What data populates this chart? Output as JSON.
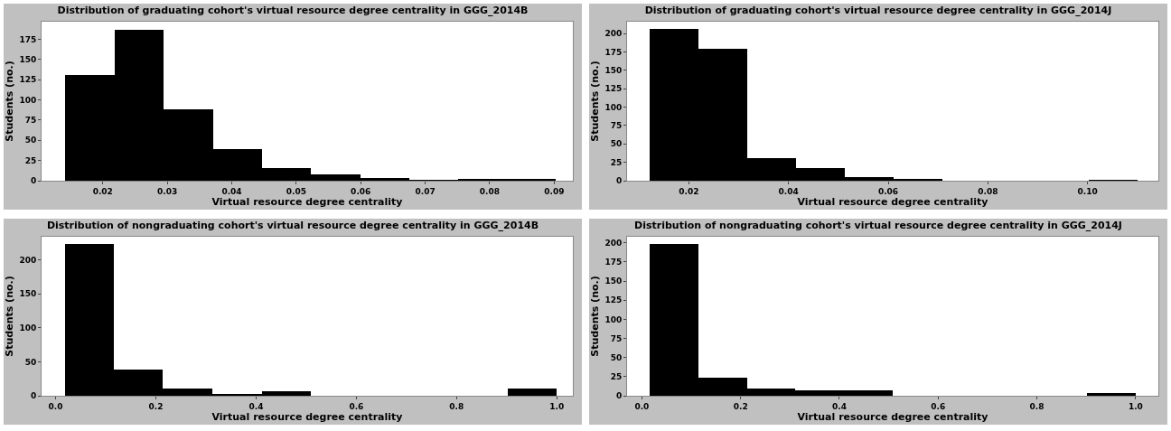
{
  "chart_data": [
    {
      "type": "histogram",
      "title": "Distribution of graduating cohort's virtual resource degree centrality in GGG_2014B",
      "xlabel": "Virtual resource degree centrality",
      "ylabel": "Students (no.)",
      "color": "#000000",
      "bins": [
        0.0142,
        0.0218,
        0.0294,
        0.0371,
        0.0447,
        0.0523,
        0.0599,
        0.0675,
        0.0751,
        0.0827,
        0.0903
      ],
      "values": [
        131,
        187,
        88,
        39,
        16,
        8,
        3,
        1,
        2,
        2
      ],
      "xlim": [
        0.0105,
        0.0929
      ],
      "xticks": [
        0.02,
        0.03,
        0.04,
        0.05,
        0.06,
        0.07,
        0.08,
        0.09
      ],
      "ylim": [
        0,
        197
      ],
      "yticks": [
        0,
        25,
        50,
        75,
        100,
        125,
        150,
        175
      ],
      "grid": false
    },
    {
      "type": "histogram",
      "title": "Distribution of graduating cohort's virtual resource degree centrality in GGG_2014J",
      "xlabel": "Virtual resource degree centrality",
      "ylabel": "Students (no.)",
      "color": "#000000",
      "bins": [
        0.0122,
        0.022,
        0.0318,
        0.0415,
        0.0513,
        0.0611,
        0.0709,
        0.1002,
        0.11
      ],
      "values": [
        206,
        179,
        31,
        17,
        5,
        3,
        0,
        1
      ],
      "xlim": [
        0.0076,
        0.1142
      ],
      "xticks": [
        0.02,
        0.04,
        0.06,
        0.08,
        {
          "value": 0.1,
          "label": "0.10"
        }
      ],
      "ylim": [
        0,
        216
      ],
      "yticks": [
        0,
        25,
        50,
        75,
        100,
        125,
        150,
        175,
        200
      ],
      "grid": false
    },
    {
      "type": "histogram",
      "title": "Distribution of nongraduating cohort's virtual resource degree centrality in GGG_2014B",
      "xlabel": "Virtual resource degree centrality",
      "ylabel": "Students (no.)",
      "color": "#000000",
      "bins": [
        0.018,
        0.116,
        0.214,
        0.313,
        0.411,
        0.509,
        0.902,
        1.0
      ],
      "values": [
        223,
        39,
        11,
        3,
        6,
        0,
        11
      ],
      "xlim": [
        -0.028,
        1.032
      ],
      "xticks": [
        {
          "value": 0,
          "label": "0.0"
        },
        0.2,
        0.4,
        0.6,
        0.8,
        {
          "value": 1,
          "label": "1.0"
        }
      ],
      "ylim": [
        0,
        234
      ],
      "yticks": [
        0,
        50,
        100,
        150,
        200
      ],
      "grid": false
    },
    {
      "type": "histogram",
      "title": "Distribution of nongraduating cohort's virtual resource degree centrality in GGG_2014J",
      "xlabel": "Virtual resource degree centrality",
      "ylabel": "Students (no.)",
      "color": "#000000",
      "bins": [
        0.016,
        0.115,
        0.213,
        0.311,
        0.41,
        0.508,
        0.902,
        1.0
      ],
      "values": [
        199,
        24,
        9,
        7,
        7,
        0,
        4
      ],
      "xlim": [
        -0.03,
        1.046
      ],
      "xticks": [
        {
          "value": 0,
          "label": "0.0"
        },
        0.2,
        0.4,
        0.6,
        0.8,
        {
          "value": 1,
          "label": "1.0"
        }
      ],
      "ylim": [
        0,
        208
      ],
      "yticks": [
        0,
        25,
        50,
        75,
        100,
        125,
        150,
        175,
        200
      ],
      "grid": false
    }
  ]
}
